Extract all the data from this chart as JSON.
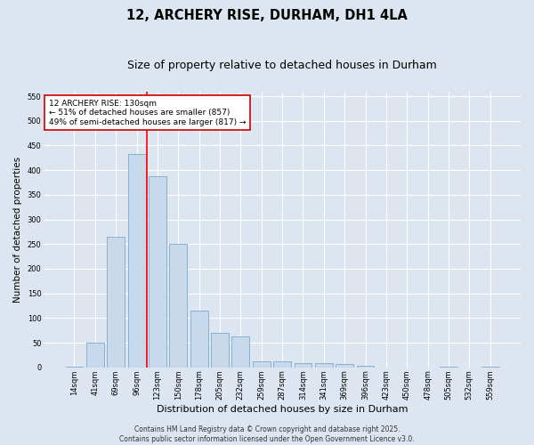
{
  "title": "12, ARCHERY RISE, DURHAM, DH1 4LA",
  "subtitle": "Size of property relative to detached houses in Durham",
  "xlabel": "Distribution of detached houses by size in Durham",
  "ylabel": "Number of detached properties",
  "categories": [
    "14sqm",
    "41sqm",
    "69sqm",
    "96sqm",
    "123sqm",
    "150sqm",
    "178sqm",
    "205sqm",
    "232sqm",
    "259sqm",
    "287sqm",
    "314sqm",
    "341sqm",
    "369sqm",
    "396sqm",
    "423sqm",
    "450sqm",
    "478sqm",
    "505sqm",
    "532sqm",
    "559sqm"
  ],
  "values": [
    2,
    50,
    265,
    432,
    388,
    250,
    115,
    70,
    62,
    13,
    13,
    9,
    8,
    6,
    4,
    0,
    0,
    0,
    2,
    0,
    1
  ],
  "bar_color": "#c8d9eb",
  "bar_edgecolor": "#7aaace",
  "background_color": "#dde6f0",
  "grid_color": "#ffffff",
  "fig_background_color": "#dde6f0",
  "red_line_x": 3.5,
  "annotation_text": "12 ARCHERY RISE: 130sqm\n← 51% of detached houses are smaller (857)\n49% of semi-detached houses are larger (817) →",
  "annotation_box_color": "#ffffff",
  "annotation_box_edgecolor": "#cc0000",
  "ylim": [
    0,
    560
  ],
  "yticks": [
    0,
    50,
    100,
    150,
    200,
    250,
    300,
    350,
    400,
    450,
    500,
    550
  ],
  "footer_line1": "Contains HM Land Registry data © Crown copyright and database right 2025.",
  "footer_line2": "Contains public sector information licensed under the Open Government Licence v3.0.",
  "title_fontsize": 10.5,
  "subtitle_fontsize": 9,
  "xlabel_fontsize": 8,
  "ylabel_fontsize": 7.5,
  "tick_fontsize": 6,
  "annotation_fontsize": 6.5,
  "footer_fontsize": 5.5
}
